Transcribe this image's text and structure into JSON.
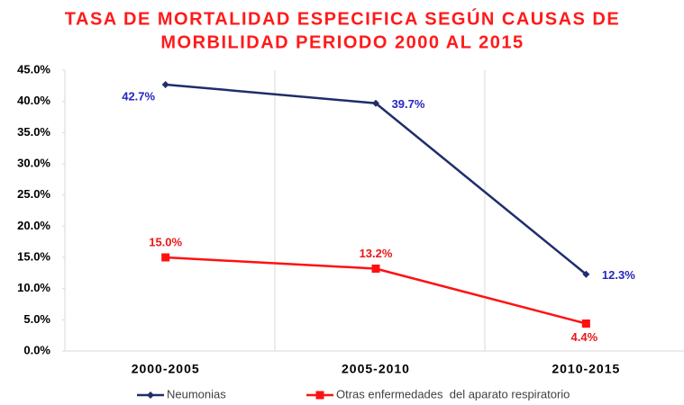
{
  "chart_data": {
    "type": "line",
    "title": [
      "TASA DE MORTALIDAD ESPECIFICA SEGÚN CAUSAS DE",
      "MORBILIDAD PERIODO 2000 AL 2015"
    ],
    "categories": [
      "2000-2005",
      "2005-2010",
      "2010-2015"
    ],
    "series": [
      {
        "name": "Neumonias",
        "color": "#1f2d6b",
        "label_color": "#2626c0",
        "marker": "diamond",
        "values": [
          42.7,
          39.7,
          12.3
        ],
        "value_labels": [
          "42.7%",
          "39.7%",
          "12.3%"
        ]
      },
      {
        "name": "Otras enfermedades  del aparato respiratorio",
        "color": "#ff1010",
        "label_color": "#e81818",
        "marker": "square",
        "values": [
          15.0,
          13.2,
          4.4
        ],
        "value_labels": [
          "15.0%",
          "13.2%",
          "4.4%"
        ]
      }
    ],
    "ylim": [
      0,
      45
    ],
    "yticks": [
      {
        "value": 0,
        "label": "0.0%"
      },
      {
        "value": 5,
        "label": "5.0%"
      },
      {
        "value": 10,
        "label": "10.0%"
      },
      {
        "value": 15,
        "label": "15.0%"
      },
      {
        "value": 20,
        "label": "20.0%"
      },
      {
        "value": 25,
        "label": "25.0%"
      },
      {
        "value": 30,
        "label": "30.0%"
      },
      {
        "value": 35,
        "label": "35.0%"
      },
      {
        "value": 40,
        "label": "40.0%"
      },
      {
        "value": 45,
        "label": "45.0%"
      }
    ],
    "legend": "bottom"
  }
}
